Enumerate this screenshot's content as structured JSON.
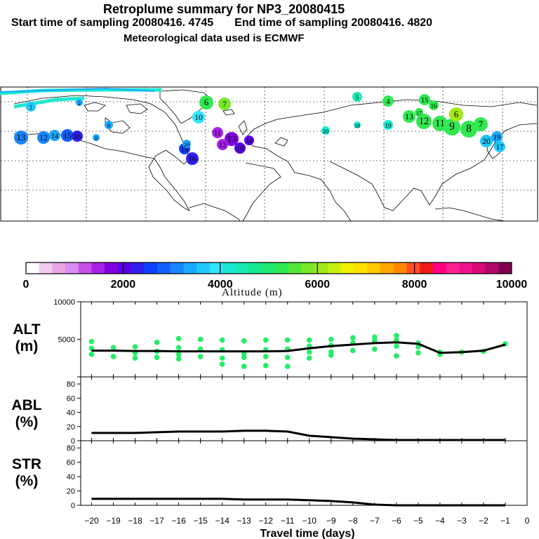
{
  "header": {
    "title": "Retroplume summary for NP3_20080415",
    "subtitle_start": "Start time of sampling 20080416.  4745",
    "subtitle_end": "End time of sampling 20080416.  4820",
    "met_line": "Meteorological data used is ECMWF"
  },
  "colorbar": {
    "title": "Altitude (m)",
    "tick_labels": [
      "0",
      "2000",
      "4000",
      "6000",
      "8000",
      "10000"
    ],
    "colors": [
      "#ffffff",
      "#f2ccf2",
      "#e6a6e6",
      "#d98cf2",
      "#c850e8",
      "#a820e6",
      "#8000e0",
      "#5a00e6",
      "#3020f0",
      "#1040ff",
      "#1060ff",
      "#1a85ff",
      "#1aa8ff",
      "#20c8ff",
      "#30e6ff",
      "#18e8d0",
      "#18e8b0",
      "#18e890",
      "#20e870",
      "#30e850",
      "#50e838",
      "#78e828",
      "#a0e818",
      "#c8f010",
      "#f0f000",
      "#ffe000",
      "#ffc800",
      "#ffa800",
      "#ff8800",
      "#ff5020",
      "#f01818",
      "#ff0080",
      "#ff2090",
      "#f0108c",
      "#d80878",
      "#b00868",
      "#800050"
    ]
  },
  "chart_data": [
    {
      "type": "line",
      "name": "ALT",
      "ylabel": "ALT\n(m)",
      "ylabel_lines": [
        "ALT",
        "(m)"
      ],
      "ylim": [
        0,
        10000
      ],
      "yticks": [
        0,
        5000,
        10000
      ],
      "ytick_labels": [
        "",
        "5000",
        "10000"
      ],
      "x": [
        -20,
        -19,
        -18,
        -17,
        -16,
        -15,
        -14,
        -13,
        -12,
        -11,
        -10,
        -9,
        -8,
        -7,
        -6,
        -5,
        -4,
        -3,
        -2,
        -1
      ],
      "values": [
        3500,
        3500,
        3450,
        3450,
        3400,
        3400,
        3400,
        3400,
        3400,
        3450,
        3800,
        4100,
        4300,
        4500,
        4600,
        4400,
        3200,
        3300,
        3500,
        4300
      ],
      "scatter_color": "#22ee66",
      "scatter": [
        [
          -20,
          4700
        ],
        [
          -20,
          3800
        ],
        [
          -20,
          3000
        ],
        [
          -19,
          3900
        ],
        [
          -19,
          2700
        ],
        [
          -18,
          4000
        ],
        [
          -18,
          3200
        ],
        [
          -18,
          2500
        ],
        [
          -17,
          4600
        ],
        [
          -17,
          3400
        ],
        [
          -17,
          2600
        ],
        [
          -16,
          5100
        ],
        [
          -16,
          3900
        ],
        [
          -16,
          3000
        ],
        [
          -16,
          2400
        ],
        [
          -15,
          5000
        ],
        [
          -15,
          3700
        ],
        [
          -15,
          2700
        ],
        [
          -14,
          4900
        ],
        [
          -14,
          3600
        ],
        [
          -14,
          2500
        ],
        [
          -14,
          1700
        ],
        [
          -13,
          4800
        ],
        [
          -13,
          3100
        ],
        [
          -13,
          2600
        ],
        [
          -13,
          1400
        ],
        [
          -12,
          4900
        ],
        [
          -12,
          3600
        ],
        [
          -12,
          2700
        ],
        [
          -12,
          1500
        ],
        [
          -11,
          4900
        ],
        [
          -11,
          3700
        ],
        [
          -11,
          2600
        ],
        [
          -11,
          1400
        ],
        [
          -10,
          4900
        ],
        [
          -10,
          4100
        ],
        [
          -10,
          3300
        ],
        [
          -10,
          2500
        ],
        [
          -9,
          5000
        ],
        [
          -9,
          4200
        ],
        [
          -9,
          3300
        ],
        [
          -9,
          2900
        ],
        [
          -8,
          5200
        ],
        [
          -8,
          4500
        ],
        [
          -8,
          3500
        ],
        [
          -7,
          5300
        ],
        [
          -7,
          4800
        ],
        [
          -7,
          3700
        ],
        [
          -6,
          5500
        ],
        [
          -6,
          4900
        ],
        [
          -6,
          4100
        ],
        [
          -6,
          2800
        ],
        [
          -5,
          4500
        ],
        [
          -5,
          4000
        ],
        [
          -5,
          3200
        ],
        [
          -4,
          3300
        ],
        [
          -4,
          3000
        ],
        [
          -3,
          3300
        ],
        [
          -2,
          3400
        ],
        [
          -1,
          4400
        ]
      ]
    },
    {
      "type": "line",
      "name": "ABL",
      "ylabel_lines": [
        "ABL",
        "(%)"
      ],
      "ylim": [
        0,
        90
      ],
      "yticks": [
        0,
        20,
        40,
        60,
        80
      ],
      "ytick_labels": [
        "0",
        "20",
        "40",
        "60",
        "80"
      ],
      "x": [
        -20,
        -19,
        -18,
        -17,
        -16,
        -15,
        -14,
        -13,
        -12,
        -11,
        -10,
        -9,
        -8,
        -7,
        -6,
        -5,
        -4,
        -3,
        -2,
        -1
      ],
      "values": [
        11,
        11,
        11,
        12,
        13,
        13,
        13,
        14,
        14,
        13,
        7,
        5,
        3,
        2,
        1,
        1,
        1,
        1,
        1,
        1
      ]
    },
    {
      "type": "line",
      "name": "STR",
      "ylabel_lines": [
        "STR",
        "(%)"
      ],
      "ylim": [
        0,
        90
      ],
      "yticks": [
        0,
        20,
        40,
        60,
        80
      ],
      "ytick_labels": [
        "0",
        "20",
        "40",
        "60",
        "80"
      ],
      "x": [
        -20,
        -19,
        -18,
        -17,
        -16,
        -15,
        -14,
        -13,
        -12,
        -11,
        -10,
        -9,
        -8,
        -7,
        -6,
        -5,
        -4,
        -3,
        -2,
        -1
      ],
      "values": [
        9,
        9,
        9,
        9,
        9,
        9,
        9,
        8,
        8,
        8,
        7,
        6,
        4,
        1,
        0,
        0,
        0,
        0,
        0,
        0
      ]
    }
  ],
  "x_axis": {
    "xlabel": "Travel time (days)",
    "xlim": [
      -20.5,
      0
    ],
    "ticks": [
      -20,
      -19,
      -18,
      -17,
      -16,
      -15,
      -14,
      -13,
      -12,
      -11,
      -10,
      -9,
      -8,
      -7,
      -6,
      -5,
      -4,
      -3,
      -2,
      -1,
      0
    ],
    "tick_labels": [
      "−20",
      "−19",
      "−18",
      "−17",
      "−16",
      "−15",
      "−14",
      "−13",
      "−12",
      "−11",
      "−10",
      "−9",
      "−8",
      "−7",
      "−6",
      "−5",
      "−4",
      "−3",
      "−2",
      "−1",
      "0"
    ]
  },
  "map": {
    "clusters": [
      {
        "label": "13",
        "color": "#1a85ff"
      },
      {
        "label": "12",
        "color": "#1a85ff"
      },
      {
        "label": "14",
        "color": "#1aa8ff"
      },
      {
        "label": "15",
        "color": "#1060ff"
      },
      {
        "label": "16",
        "color": "#3020f0"
      },
      {
        "label": "1",
        "color": "#20c8ff"
      },
      {
        "label": "2",
        "color": "#1aa8ff"
      },
      {
        "label": "9",
        "color": "#1aa8ff"
      },
      {
        "label": "8",
        "color": "#1aa8ff"
      },
      {
        "label": "10",
        "color": "#30e6ff"
      },
      {
        "label": "6",
        "color": "#30e850"
      },
      {
        "label": "7",
        "color": "#78e828"
      },
      {
        "label": "11",
        "color": "#a820e6"
      },
      {
        "label": "13",
        "color": "#8000e0"
      },
      {
        "label": "12",
        "color": "#a820e6"
      },
      {
        "label": "10",
        "color": "#5a00e6"
      },
      {
        "label": "14",
        "color": "#5a00e6"
      },
      {
        "label": "16",
        "color": "#3020f0"
      },
      {
        "label": "18",
        "color": "#1040ff"
      },
      {
        "label": "20",
        "color": "#1aa8ff"
      },
      {
        "label": "5",
        "color": "#18e8b0"
      },
      {
        "label": "4",
        "color": "#30e850"
      },
      {
        "label": "19",
        "color": "#18e8d0"
      },
      {
        "label": "20",
        "color": "#18e8d0"
      },
      {
        "label": "18",
        "color": "#18e8d0"
      },
      {
        "label": "13",
        "color": "#30e850"
      },
      {
        "label": "12",
        "color": "#30e850"
      },
      {
        "label": "11",
        "color": "#30e850"
      },
      {
        "label": "9",
        "color": "#30e850"
      },
      {
        "label": "8",
        "color": "#30e850"
      },
      {
        "label": "7",
        "color": "#30e850"
      },
      {
        "label": "6",
        "color": "#a0e818"
      },
      {
        "label": "15",
        "color": "#30e850"
      },
      {
        "label": "16",
        "color": "#30e850"
      },
      {
        "label": "17",
        "color": "#30e850"
      },
      {
        "label": "20",
        "color": "#20c8ff"
      },
      {
        "label": "19",
        "color": "#1aa8ff"
      },
      {
        "label": "17",
        "color": "#20c8ff"
      }
    ]
  }
}
